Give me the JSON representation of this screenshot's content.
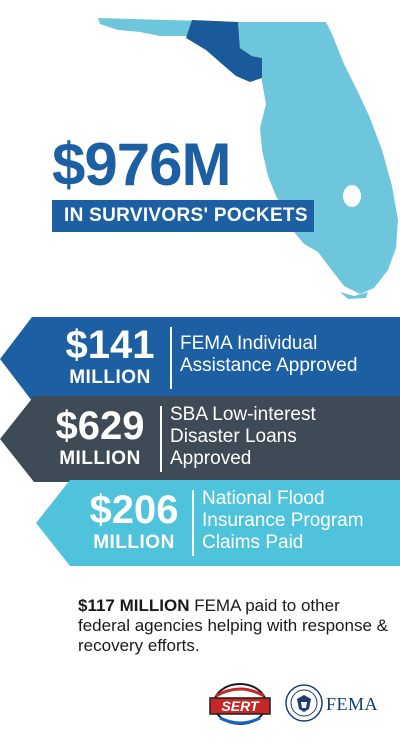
{
  "headline": {
    "amount": "$976M",
    "subtitle": "IN SURVIVORS' POCKETS"
  },
  "bands": [
    {
      "amount": "$141",
      "unit": "MILLION",
      "desc": [
        "FEMA Individual",
        "Assistance Approved"
      ],
      "color": "#1d5fa3"
    },
    {
      "amount": "$629",
      "unit": "MILLION",
      "desc": [
        "SBA Low-interest",
        "Disaster Loans",
        "Approved"
      ],
      "color": "#3e4a55"
    },
    {
      "amount": "$206",
      "unit": "MILLION",
      "desc": [
        "National Flood",
        "Insurance Program",
        "Claims Paid"
      ],
      "color": "#4fc3dc"
    }
  ],
  "footnote": {
    "bold": "$117 MILLION",
    "text": " FEMA paid to other federal agencies helping with response & recovery efforts."
  },
  "logos": {
    "sert_text": "SERT",
    "fema_text": "FEMA"
  },
  "colors": {
    "map_light": "#6ec6dc",
    "map_dark": "#1a5a9a",
    "brand_blue": "#1d5fa3"
  }
}
